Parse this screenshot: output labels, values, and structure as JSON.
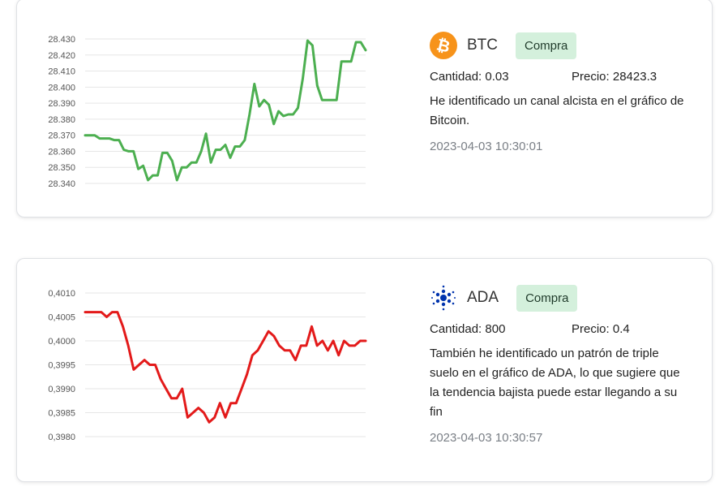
{
  "cards": [
    {
      "symbol": "BTC",
      "icon": "bitcoin-icon",
      "badge": "Compra",
      "quantity": "Cantidad: 0.03",
      "price": "Precio: 28423.3",
      "description": "He identificado un canal alcista en el gráfico de Bitcoin.",
      "timestamp": "2023-04-03 10:30:01",
      "colors": {
        "line": "#4caf50",
        "icon_bg": "#f7931a",
        "badge_bg": "#d4f0dc"
      }
    },
    {
      "symbol": "ADA",
      "icon": "cardano-icon",
      "badge": "Compra",
      "quantity": "Cantidad: 800",
      "price": "Precio: 0.4",
      "description": "También he identificado un patrón de triple suelo en el gráfico de ADA, lo que sugiere que la tendencia bajista puede estar llegando a su fin",
      "timestamp": "2023-04-03 10:30:57",
      "colors": {
        "line": "#e31a1a",
        "icon_bg": "#0033ad",
        "badge_bg": "#d4f0dc"
      }
    }
  ],
  "chart_data": [
    {
      "type": "line",
      "ylim": [
        28.34,
        28.43
      ],
      "yticks": [
        "28.430",
        "28.420",
        "28.410",
        "28.400",
        "28.390",
        "28.380",
        "28.370",
        "28.360",
        "28.350",
        "28.340"
      ],
      "grid": true,
      "values": [
        28.37,
        28.37,
        28.37,
        28.368,
        28.368,
        28.368,
        28.367,
        28.367,
        28.361,
        28.36,
        28.36,
        28.349,
        28.351,
        28.342,
        28.345,
        28.345,
        28.359,
        28.359,
        28.354,
        28.342,
        28.35,
        28.35,
        28.353,
        28.353,
        28.36,
        28.371,
        28.353,
        28.361,
        28.361,
        28.364,
        28.356,
        28.363,
        28.363,
        28.367,
        28.383,
        28.402,
        28.388,
        28.392,
        28.389,
        28.377,
        28.385,
        28.382,
        28.383,
        28.383,
        28.387,
        28.405,
        28.429,
        28.426,
        28.401,
        28.392,
        28.392,
        28.392,
        28.392,
        28.416,
        28.416,
        28.416,
        28.428,
        28.428,
        28.423
      ]
    },
    {
      "type": "line",
      "ylim": [
        0.398,
        0.401
      ],
      "yticks": [
        "0,4010",
        "0,4005",
        "0,4000",
        "0,3995",
        "0,3990",
        "0,3985",
        "0,3980"
      ],
      "grid": true,
      "values": [
        0.4006,
        0.4006,
        0.4006,
        0.4006,
        0.4005,
        0.4006,
        0.4006,
        0.4003,
        0.3999,
        0.3994,
        0.3995,
        0.3996,
        0.3995,
        0.3995,
        0.3992,
        0.399,
        0.3988,
        0.3988,
        0.399,
        0.3984,
        0.3985,
        0.3986,
        0.3985,
        0.3983,
        0.3984,
        0.3987,
        0.3984,
        0.3987,
        0.3987,
        0.399,
        0.3993,
        0.3997,
        0.3998,
        0.4,
        0.4002,
        0.4001,
        0.3999,
        0.3998,
        0.3998,
        0.3996,
        0.3999,
        0.3999,
        0.4003,
        0.3999,
        0.4,
        0.3998,
        0.4,
        0.3997,
        0.4,
        0.3999,
        0.3999,
        0.4,
        0.4
      ]
    }
  ]
}
